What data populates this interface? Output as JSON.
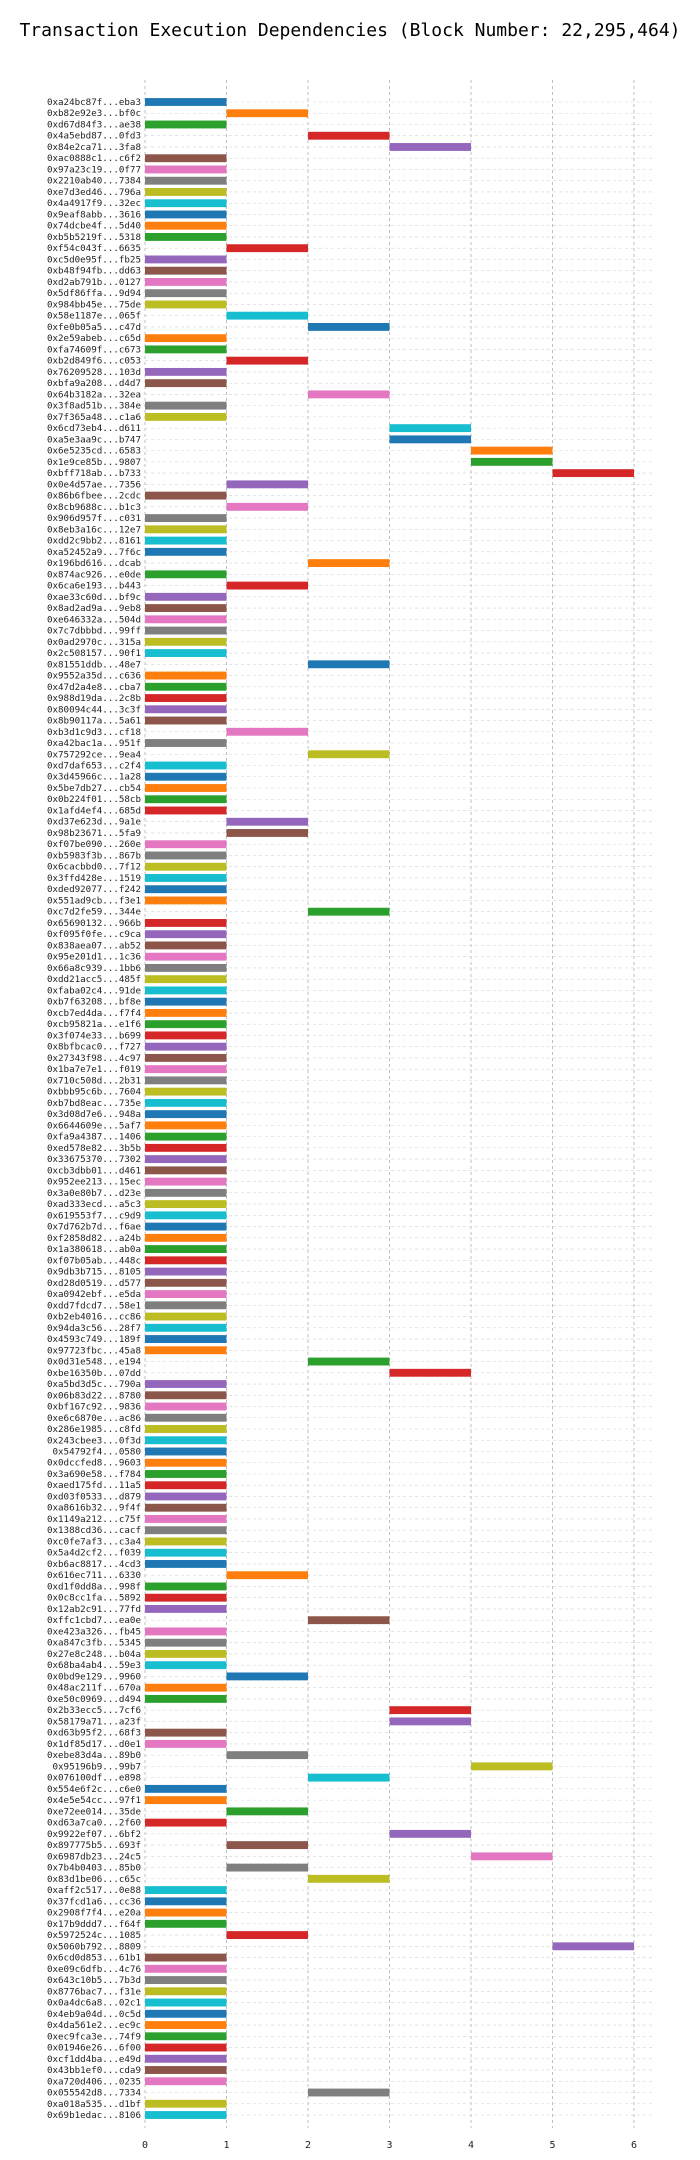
{
  "chart_data": {
    "type": "bar",
    "orientation": "horizontal",
    "title": "Transaction Execution Dependencies (Block Number: 22,295,464)",
    "xlabel": "",
    "ylabel": "",
    "xlim": [
      0,
      6
    ],
    "xticks": [
      0,
      1,
      2,
      3,
      4,
      5,
      6
    ],
    "grid": true,
    "legend": "none",
    "colors": [
      "#1f77b4",
      "#ff7f0e",
      "#2ca02c",
      "#d62728",
      "#9467bd",
      "#8c564b",
      "#e377c2",
      "#7f7f7f",
      "#bcbd22",
      "#17becf"
    ],
    "transactions": [
      {
        "label": "0xa24bc87f...eba3",
        "start": 0,
        "end": 1
      },
      {
        "label": "0xb82e92e3...bf0c",
        "start": 1,
        "end": 2
      },
      {
        "label": "0xd67d84f3...ae38",
        "start": 0,
        "end": 1
      },
      {
        "label": "0x4a5ebd87...0fd3",
        "start": 2,
        "end": 3
      },
      {
        "label": "0x84e2ca71...3fa8",
        "start": 3,
        "end": 4
      },
      {
        "label": "0xac0888c1...c6f2",
        "start": 0,
        "end": 1
      },
      {
        "label": "0x97a23c19...0f77",
        "start": 0,
        "end": 1
      },
      {
        "label": "0x2210ab40...7384",
        "start": 0,
        "end": 1
      },
      {
        "label": "0xe7d3ed46...796a",
        "start": 0,
        "end": 1
      },
      {
        "label": "0x4a4917f9...32ec",
        "start": 0,
        "end": 1
      },
      {
        "label": "0x9eaf8abb...3616",
        "start": 0,
        "end": 1
      },
      {
        "label": "0x74dcbe4f...5d40",
        "start": 0,
        "end": 1
      },
      {
        "label": "0xb5b5219f...5318",
        "start": 0,
        "end": 1
      },
      {
        "label": "0xf54c043f...6635",
        "start": 1,
        "end": 2
      },
      {
        "label": "0xc5d0e95f...fb25",
        "start": 0,
        "end": 1
      },
      {
        "label": "0xb48f94fb...dd63",
        "start": 0,
        "end": 1
      },
      {
        "label": "0xd2ab791b...0127",
        "start": 0,
        "end": 1
      },
      {
        "label": "0x5df86ffa...9d94",
        "start": 0,
        "end": 1
      },
      {
        "label": "0x984bb45e...75de",
        "start": 0,
        "end": 1
      },
      {
        "label": "0x58e1187e...065f",
        "start": 1,
        "end": 2
      },
      {
        "label": "0xfe0b05a5...c47d",
        "start": 2,
        "end": 3
      },
      {
        "label": "0x2e59abeb...c65d",
        "start": 0,
        "end": 1
      },
      {
        "label": "0xfa74609f...c673",
        "start": 0,
        "end": 1
      },
      {
        "label": "0xb2d849f6...c053",
        "start": 1,
        "end": 2
      },
      {
        "label": "0x76209528...103d",
        "start": 0,
        "end": 1
      },
      {
        "label": "0xbfa9a208...d4d7",
        "start": 0,
        "end": 1
      },
      {
        "label": "0x64b3182a...32ea",
        "start": 2,
        "end": 3
      },
      {
        "label": "0x3f8ad51b...384e",
        "start": 0,
        "end": 1
      },
      {
        "label": "0x7f365a48...c1a6",
        "start": 0,
        "end": 1
      },
      {
        "label": "0x6cd73eb4...d611",
        "start": 3,
        "end": 4
      },
      {
        "label": "0xa5e3aa9c...b747",
        "start": 3,
        "end": 4
      },
      {
        "label": "0x6e5235cd...6583",
        "start": 4,
        "end": 5
      },
      {
        "label": "0x1e9ce85b...9807",
        "start": 4,
        "end": 5
      },
      {
        "label": "0xbff718ab...b733",
        "start": 5,
        "end": 6
      },
      {
        "label": "0x0e4d57ae...7356",
        "start": 1,
        "end": 2
      },
      {
        "label": "0x86b6fbee...2cdc",
        "start": 0,
        "end": 1
      },
      {
        "label": "0x8cb9688c...b1c3",
        "start": 1,
        "end": 2
      },
      {
        "label": "0x906d957f...c031",
        "start": 0,
        "end": 1
      },
      {
        "label": "0x8eb3a16c...12e7",
        "start": 0,
        "end": 1
      },
      {
        "label": "0xdd2c9bb2...8161",
        "start": 0,
        "end": 1
      },
      {
        "label": "0xa52452a9...7f6c",
        "start": 0,
        "end": 1
      },
      {
        "label": "0x196bd616...dcab",
        "start": 2,
        "end": 3
      },
      {
        "label": "0x874ac926...e0de",
        "start": 0,
        "end": 1
      },
      {
        "label": "0x6ca6e193...b443",
        "start": 1,
        "end": 2
      },
      {
        "label": "0xae33c60d...bf9c",
        "start": 0,
        "end": 1
      },
      {
        "label": "0x8ad2ad9a...9eb8",
        "start": 0,
        "end": 1
      },
      {
        "label": "0xe646332a...504d",
        "start": 0,
        "end": 1
      },
      {
        "label": "0x7c7dbbbd...99ff",
        "start": 0,
        "end": 1
      },
      {
        "label": "0x0ad2970c...315a",
        "start": 0,
        "end": 1
      },
      {
        "label": "0x2c508157...90f1",
        "start": 0,
        "end": 1
      },
      {
        "label": "0x81551ddb...48e7",
        "start": 2,
        "end": 3
      },
      {
        "label": "0x9552a35d...c636",
        "start": 0,
        "end": 1
      },
      {
        "label": "0x47d2a4e8...cba7",
        "start": 0,
        "end": 1
      },
      {
        "label": "0x988d19da...2c8b",
        "start": 0,
        "end": 1
      },
      {
        "label": "0x80094c44...3c3f",
        "start": 0,
        "end": 1
      },
      {
        "label": "0x8b90117a...5a61",
        "start": 0,
        "end": 1
      },
      {
        "label": "0xb3d1c9d3...cf18",
        "start": 1,
        "end": 2
      },
      {
        "label": "0xa42bac1a...951f",
        "start": 0,
        "end": 1
      },
      {
        "label": "0x757292ce...9ea4",
        "start": 2,
        "end": 3
      },
      {
        "label": "0xd7daf653...c2f4",
        "start": 0,
        "end": 1
      },
      {
        "label": "0x3d45966c...1a28",
        "start": 0,
        "end": 1
      },
      {
        "label": "0x5be7db27...cb54",
        "start": 0,
        "end": 1
      },
      {
        "label": "0x0b224f01...58cb",
        "start": 0,
        "end": 1
      },
      {
        "label": "0x1afd4ef4...685d",
        "start": 0,
        "end": 1
      },
      {
        "label": "0xd37e623d...9a1e",
        "start": 1,
        "end": 2
      },
      {
        "label": "0x98b23671...5fa9",
        "start": 1,
        "end": 2
      },
      {
        "label": "0xf07be090...260e",
        "start": 0,
        "end": 1
      },
      {
        "label": "0xb5983f3b...867b",
        "start": 0,
        "end": 1
      },
      {
        "label": "0x6cacbbd0...7f12",
        "start": 0,
        "end": 1
      },
      {
        "label": "0x3ffd428e...1519",
        "start": 0,
        "end": 1
      },
      {
        "label": "0xded92077...f242",
        "start": 0,
        "end": 1
      },
      {
        "label": "0x551ad9cb...f3e1",
        "start": 0,
        "end": 1
      },
      {
        "label": "0xc7d2fe59...344e",
        "start": 2,
        "end": 3
      },
      {
        "label": "0x65690132...966b",
        "start": 0,
        "end": 1
      },
      {
        "label": "0xf095f0fe...c9ca",
        "start": 0,
        "end": 1
      },
      {
        "label": "0x838aea07...ab52",
        "start": 0,
        "end": 1
      },
      {
        "label": "0x95e201d1...1c36",
        "start": 0,
        "end": 1
      },
      {
        "label": "0x66a8c939...1bb6",
        "start": 0,
        "end": 1
      },
      {
        "label": "0xdd21acc5...485f",
        "start": 0,
        "end": 1
      },
      {
        "label": "0xfaba02c4...91de",
        "start": 0,
        "end": 1
      },
      {
        "label": "0xb7f63208...bf8e",
        "start": 0,
        "end": 1
      },
      {
        "label": "0xcb7ed4da...f7f4",
        "start": 0,
        "end": 1
      },
      {
        "label": "0xcb95821a...e1f6",
        "start": 0,
        "end": 1
      },
      {
        "label": "0x3f074e33...b699",
        "start": 0,
        "end": 1
      },
      {
        "label": "0x8bfbcac0...f727",
        "start": 0,
        "end": 1
      },
      {
        "label": "0x27343f98...4c97",
        "start": 0,
        "end": 1
      },
      {
        "label": "0x1ba7e7e1...f019",
        "start": 0,
        "end": 1
      },
      {
        "label": "0x710c508d...2b31",
        "start": 0,
        "end": 1
      },
      {
        "label": "0xbbb95c6b...7604",
        "start": 0,
        "end": 1
      },
      {
        "label": "0xb7bd8eac...735e",
        "start": 0,
        "end": 1
      },
      {
        "label": "0x3d08d7e6...948a",
        "start": 0,
        "end": 1
      },
      {
        "label": "0x6644609e...5af7",
        "start": 0,
        "end": 1
      },
      {
        "label": "0xfa9a4387...1406",
        "start": 0,
        "end": 1
      },
      {
        "label": "0xed578e82...3b5b",
        "start": 0,
        "end": 1
      },
      {
        "label": "0x33675370...7302",
        "start": 0,
        "end": 1
      },
      {
        "label": "0xcb3dbb01...d461",
        "start": 0,
        "end": 1
      },
      {
        "label": "0x952ee213...15ec",
        "start": 0,
        "end": 1
      },
      {
        "label": "0x3a0e80b7...d23e",
        "start": 0,
        "end": 1
      },
      {
        "label": "0xad333ecd...a5c3",
        "start": 0,
        "end": 1
      },
      {
        "label": "0x619553f7...c9d9",
        "start": 0,
        "end": 1
      },
      {
        "label": "0x7d762b7d...f6ae",
        "start": 0,
        "end": 1
      },
      {
        "label": "0xf2858d82...a24b",
        "start": 0,
        "end": 1
      },
      {
        "label": "0x1a380618...ab0a",
        "start": 0,
        "end": 1
      },
      {
        "label": "0xf07b05ab...448c",
        "start": 0,
        "end": 1
      },
      {
        "label": "0x9db3b715...8105",
        "start": 0,
        "end": 1
      },
      {
        "label": "0xd28d0519...d577",
        "start": 0,
        "end": 1
      },
      {
        "label": "0xa0942ebf...e5da",
        "start": 0,
        "end": 1
      },
      {
        "label": "0xdd7fdcd7...58e1",
        "start": 0,
        "end": 1
      },
      {
        "label": "0xb2eb4016...cc86",
        "start": 0,
        "end": 1
      },
      {
        "label": "0x94da3c56...28f7",
        "start": 0,
        "end": 1
      },
      {
        "label": "0x4593c749...189f",
        "start": 0,
        "end": 1
      },
      {
        "label": "0x97723fbc...45a8",
        "start": 0,
        "end": 1
      },
      {
        "label": "0x0d31e548...e194",
        "start": 2,
        "end": 3
      },
      {
        "label": "0xbe16350b...07dd",
        "start": 3,
        "end": 4
      },
      {
        "label": "0xa5bd3d5c...790a",
        "start": 0,
        "end": 1
      },
      {
        "label": "0x06b83d22...8780",
        "start": 0,
        "end": 1
      },
      {
        "label": "0xbf167c92...9836",
        "start": 0,
        "end": 1
      },
      {
        "label": "0xe6c6870e...ac86",
        "start": 0,
        "end": 1
      },
      {
        "label": "0x286e1985...c8fd",
        "start": 0,
        "end": 1
      },
      {
        "label": "0x243cbee3...0f3d",
        "start": 0,
        "end": 1
      },
      {
        "label": "0x54792f4...0580",
        "start": 0,
        "end": 1
      },
      {
        "label": "0x0dccfed8...9603",
        "start": 0,
        "end": 1
      },
      {
        "label": "0x3a690e58...f784",
        "start": 0,
        "end": 1
      },
      {
        "label": "0xaed175fd...11a5",
        "start": 0,
        "end": 1
      },
      {
        "label": "0xd03f0533...d879",
        "start": 0,
        "end": 1
      },
      {
        "label": "0xa8616b32...9f4f",
        "start": 0,
        "end": 1
      },
      {
        "label": "0x1149a212...c75f",
        "start": 0,
        "end": 1
      },
      {
        "label": "0x1388cd36...cacf",
        "start": 0,
        "end": 1
      },
      {
        "label": "0xc0fe7af3...c3a4",
        "start": 0,
        "end": 1
      },
      {
        "label": "0x5a4d2cf2...f039",
        "start": 0,
        "end": 1
      },
      {
        "label": "0xb6ac8817...4cd3",
        "start": 0,
        "end": 1
      },
      {
        "label": "0x616ec711...6330",
        "start": 1,
        "end": 2
      },
      {
        "label": "0xd1f0dd8a...998f",
        "start": 0,
        "end": 1
      },
      {
        "label": "0x0c8cc1fa...5892",
        "start": 0,
        "end": 1
      },
      {
        "label": "0x12ab2c91...77fd",
        "start": 0,
        "end": 1
      },
      {
        "label": "0xffc1cbd7...ea0e",
        "start": 2,
        "end": 3
      },
      {
        "label": "0xe423a326...fb45",
        "start": 0,
        "end": 1
      },
      {
        "label": "0xa847c3fb...5345",
        "start": 0,
        "end": 1
      },
      {
        "label": "0x27e8c248...b04a",
        "start": 0,
        "end": 1
      },
      {
        "label": "0x68ba4ab4...59e3",
        "start": 0,
        "end": 1
      },
      {
        "label": "0x0bd9e129...9960",
        "start": 1,
        "end": 2
      },
      {
        "label": "0x48ac211f...670a",
        "start": 0,
        "end": 1
      },
      {
        "label": "0xe50c0969...d494",
        "start": 0,
        "end": 1
      },
      {
        "label": "0x2b33ecc5...7cf6",
        "start": 3,
        "end": 4
      },
      {
        "label": "0x58179a71...a23f",
        "start": 3,
        "end": 4
      },
      {
        "label": "0xd63b95f2...68f3",
        "start": 0,
        "end": 1
      },
      {
        "label": "0x1df85d17...d0e1",
        "start": 0,
        "end": 1
      },
      {
        "label": "0xebe83d4a...89b0",
        "start": 1,
        "end": 2
      },
      {
        "label": "0x95196b9...99b7",
        "start": 4,
        "end": 5
      },
      {
        "label": "0x076100df...e898",
        "start": 2,
        "end": 3
      },
      {
        "label": "0x554e6f2c...c6e0",
        "start": 0,
        "end": 1
      },
      {
        "label": "0x4e5e54cc...97f1",
        "start": 0,
        "end": 1
      },
      {
        "label": "0xe72ee014...35de",
        "start": 1,
        "end": 2
      },
      {
        "label": "0xd63a7ca0...2f60",
        "start": 0,
        "end": 1
      },
      {
        "label": "0x9922ef07...6bf2",
        "start": 3,
        "end": 4
      },
      {
        "label": "0x897775b5...693f",
        "start": 1,
        "end": 2
      },
      {
        "label": "0x6987db23...24c5",
        "start": 4,
        "end": 5
      },
      {
        "label": "0x7b4b0403...85b0",
        "start": 1,
        "end": 2
      },
      {
        "label": "0x83d1be06...c65c",
        "start": 2,
        "end": 3
      },
      {
        "label": "0xaff2c517...0e88",
        "start": 0,
        "end": 1
      },
      {
        "label": "0x37fcd1a6...cc36",
        "start": 0,
        "end": 1
      },
      {
        "label": "0x2908f7f4...e20a",
        "start": 0,
        "end": 1
      },
      {
        "label": "0x17b9ddd7...f64f",
        "start": 0,
        "end": 1
      },
      {
        "label": "0x5972524c...1085",
        "start": 1,
        "end": 2
      },
      {
        "label": "0x5060b792...8809",
        "start": 5,
        "end": 6
      },
      {
        "label": "0x6cd0d853...61b1",
        "start": 0,
        "end": 1
      },
      {
        "label": "0xe09c6dfb...4c76",
        "start": 0,
        "end": 1
      },
      {
        "label": "0x643c10b5...7b3d",
        "start": 0,
        "end": 1
      },
      {
        "label": "0x8776bac7...f31e",
        "start": 0,
        "end": 1
      },
      {
        "label": "0x0a4dc6a8...02c1",
        "start": 0,
        "end": 1
      },
      {
        "label": "0x4eb9a04d...0c5d",
        "start": 0,
        "end": 1
      },
      {
        "label": "0x4da561e2...ec9c",
        "start": 0,
        "end": 1
      },
      {
        "label": "0xec9fca3e...74f9",
        "start": 0,
        "end": 1
      },
      {
        "label": "0x01946e26...6f00",
        "start": 0,
        "end": 1
      },
      {
        "label": "0xcf1dd4ba...e49d",
        "start": 0,
        "end": 1
      },
      {
        "label": "0x43bb1ef0...cda9",
        "start": 0,
        "end": 1
      },
      {
        "label": "0xa720d406...0235",
        "start": 0,
        "end": 1
      },
      {
        "label": "0x055542d8...7334",
        "start": 2,
        "end": 3
      },
      {
        "label": "0xa018a535...d1bf",
        "start": 0,
        "end": 1
      },
      {
        "label": "0x69b1edac...8106",
        "start": 0,
        "end": 1
      }
    ]
  }
}
